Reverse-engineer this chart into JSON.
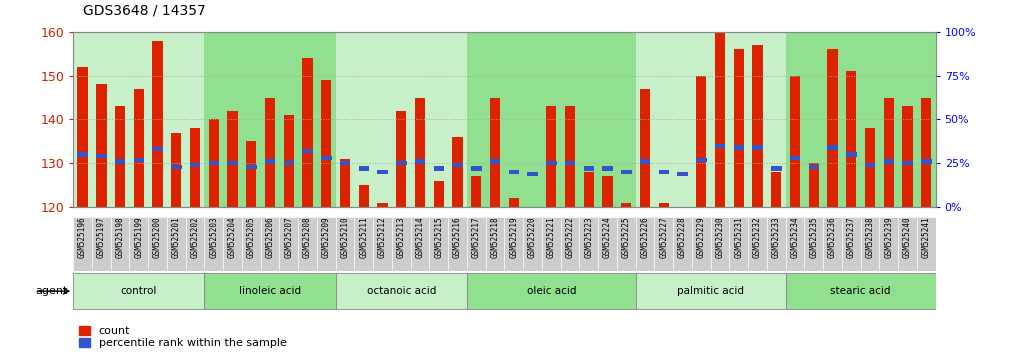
{
  "title": "GDS3648 / 14357",
  "samples": [
    "GSM525196",
    "GSM525197",
    "GSM525198",
    "GSM525199",
    "GSM525200",
    "GSM525201",
    "GSM525202",
    "GSM525203",
    "GSM525204",
    "GSM525205",
    "GSM525206",
    "GSM525207",
    "GSM525208",
    "GSM525209",
    "GSM525210",
    "GSM525211",
    "GSM525212",
    "GSM525213",
    "GSM525214",
    "GSM525215",
    "GSM525216",
    "GSM525217",
    "GSM525218",
    "GSM525219",
    "GSM525220",
    "GSM525221",
    "GSM525222",
    "GSM525223",
    "GSM525224",
    "GSM525225",
    "GSM525226",
    "GSM525227",
    "GSM525228",
    "GSM525229",
    "GSM525230",
    "GSM525231",
    "GSM525232",
    "GSM525233",
    "GSM525234",
    "GSM525235",
    "GSM525236",
    "GSM525237",
    "GSM525238",
    "GSM525239",
    "GSM525240",
    "GSM525241"
  ],
  "counts": [
    152,
    148,
    143,
    147,
    158,
    137,
    138,
    140,
    142,
    135,
    145,
    141,
    154,
    149,
    131,
    125,
    121,
    142,
    145,
    126,
    136,
    127,
    145,
    122,
    120,
    143,
    143,
    128,
    127,
    121,
    147,
    121,
    119,
    150,
    160,
    156,
    157,
    128,
    150,
    130,
    156,
    151,
    138,
    145,
    143,
    145
  ],
  "percentile_rank": [
    30,
    29,
    26,
    27,
    33,
    23,
    24,
    25,
    25,
    23,
    26,
    25,
    32,
    28,
    25,
    22,
    20,
    25,
    26,
    22,
    24,
    22,
    26,
    20,
    19,
    25,
    25,
    22,
    22,
    20,
    26,
    20,
    19,
    27,
    35,
    34,
    34,
    22,
    28,
    23,
    34,
    30,
    24,
    26,
    25,
    26
  ],
  "groups": [
    {
      "label": "control",
      "start": 0,
      "end": 6,
      "color": "#c8f0c8"
    },
    {
      "label": "linoleic acid",
      "start": 7,
      "end": 13,
      "color": "#90e090"
    },
    {
      "label": "octanoic acid",
      "start": 14,
      "end": 20,
      "color": "#c8f0c8"
    },
    {
      "label": "oleic acid",
      "start": 21,
      "end": 29,
      "color": "#90e090"
    },
    {
      "label": "palmitic acid",
      "start": 30,
      "end": 37,
      "color": "#c8f0c8"
    },
    {
      "label": "stearic acid",
      "start": 38,
      "end": 45,
      "color": "#90e090"
    }
  ],
  "bar_color": "#dd2200",
  "blue_color": "#3355cc",
  "ymin": 120,
  "ymax": 160,
  "yticks_left": [
    120,
    130,
    140,
    150,
    160
  ],
  "yticks_right": [
    0,
    25,
    50,
    75,
    100
  ],
  "ytick_right_labels": [
    "0%",
    "25%",
    "50%",
    "75%",
    "100%"
  ],
  "bg_color": "#ffffff",
  "grid_color": "#aaaaaa",
  "xlabel_bg": "#cccccc",
  "group_border_color": "#888888"
}
